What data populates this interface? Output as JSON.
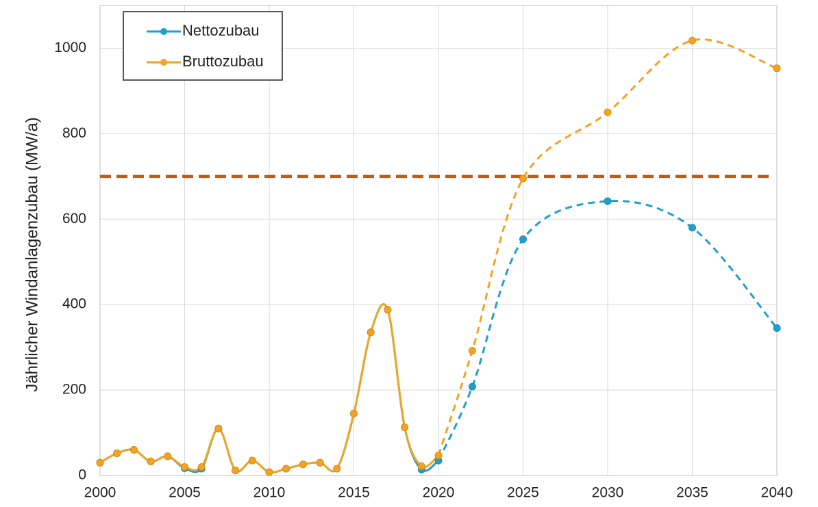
{
  "chart_data": {
    "type": "line",
    "y_label": "Jährlicher Windanlagenzubau (MW/a)",
    "x": [
      2000,
      2001,
      2002,
      2003,
      2004,
      2005,
      2006,
      2007,
      2008,
      2009,
      2010,
      2011,
      2012,
      2013,
      2014,
      2015,
      2016,
      2017,
      2018,
      2019,
      2020,
      2022,
      2025,
      2030,
      2035,
      2040
    ],
    "series": [
      {
        "name": "Nettozubau",
        "color": "#1f9fcc",
        "values": [
          30,
          52,
          60,
          33,
          45,
          17,
          16,
          110,
          12,
          35,
          8,
          16,
          26,
          30,
          16,
          145,
          335,
          388,
          113,
          14,
          35,
          208,
          553,
          642,
          580,
          345
        ]
      },
      {
        "name": "Bruttozubau",
        "color": "#f4a31f",
        "values": [
          30,
          52,
          60,
          33,
          45,
          20,
          20,
          110,
          12,
          35,
          8,
          16,
          26,
          30,
          16,
          145,
          335,
          388,
          113,
          22,
          47,
          292,
          695,
          850,
          1018,
          953
        ]
      }
    ],
    "dashed_after": 2020,
    "reference_line": {
      "value": 700,
      "color": "#c55a11"
    },
    "xlim": [
      2000,
      2040
    ],
    "xticks": [
      2000,
      2005,
      2010,
      2015,
      2020,
      2025,
      2030,
      2035,
      2040
    ],
    "ylim": [
      0,
      1100
    ],
    "yticks": [
      0,
      200,
      400,
      600,
      800,
      1000
    ],
    "grid": true,
    "legend": "upper left"
  }
}
